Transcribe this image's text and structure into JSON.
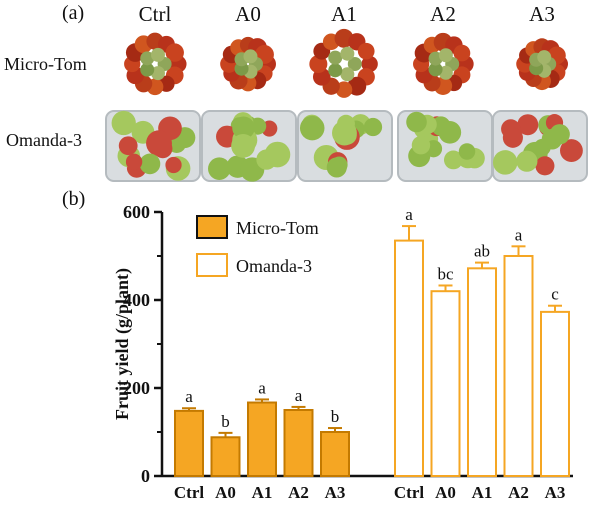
{
  "panels": {
    "a": "(a)",
    "b": "(b)"
  },
  "photo_panel": {
    "columns": [
      "Ctrl",
      "A0",
      "A1",
      "A2",
      "A3"
    ],
    "rows": [
      "Micro-Tom",
      "Omanda-3"
    ]
  },
  "colors": {
    "microtom": "#f5a623",
    "microtom_edge": "#c47a00",
    "omanda": "#ffffff",
    "omanda_edge": "#f5a623",
    "axis": "#111111"
  },
  "chart_data": {
    "type": "bar",
    "title": "",
    "xlabel": "",
    "ylabel": "Fruit yield (g/plant)",
    "ylim": [
      0,
      600
    ],
    "yticks": [
      "0",
      "200",
      "400",
      "600"
    ],
    "ytick_values": [
      0,
      200,
      400,
      600
    ],
    "categories": [
      "Ctrl",
      "A0",
      "A1",
      "A2",
      "A3"
    ],
    "legend_position": "top-left",
    "series": [
      {
        "name": "Micro-Tom",
        "values": [
          148,
          88,
          167,
          150,
          100
        ],
        "errors": [
          6,
          10,
          7,
          7,
          9
        ],
        "letters": [
          "a",
          "b",
          "a",
          "a",
          "b"
        ]
      },
      {
        "name": "Omanda-3",
        "values": [
          535,
          420,
          472,
          500,
          373
        ],
        "errors": [
          33,
          13,
          13,
          22,
          14
        ],
        "letters": [
          "a",
          "bc",
          "ab",
          "a",
          "c"
        ]
      }
    ]
  }
}
